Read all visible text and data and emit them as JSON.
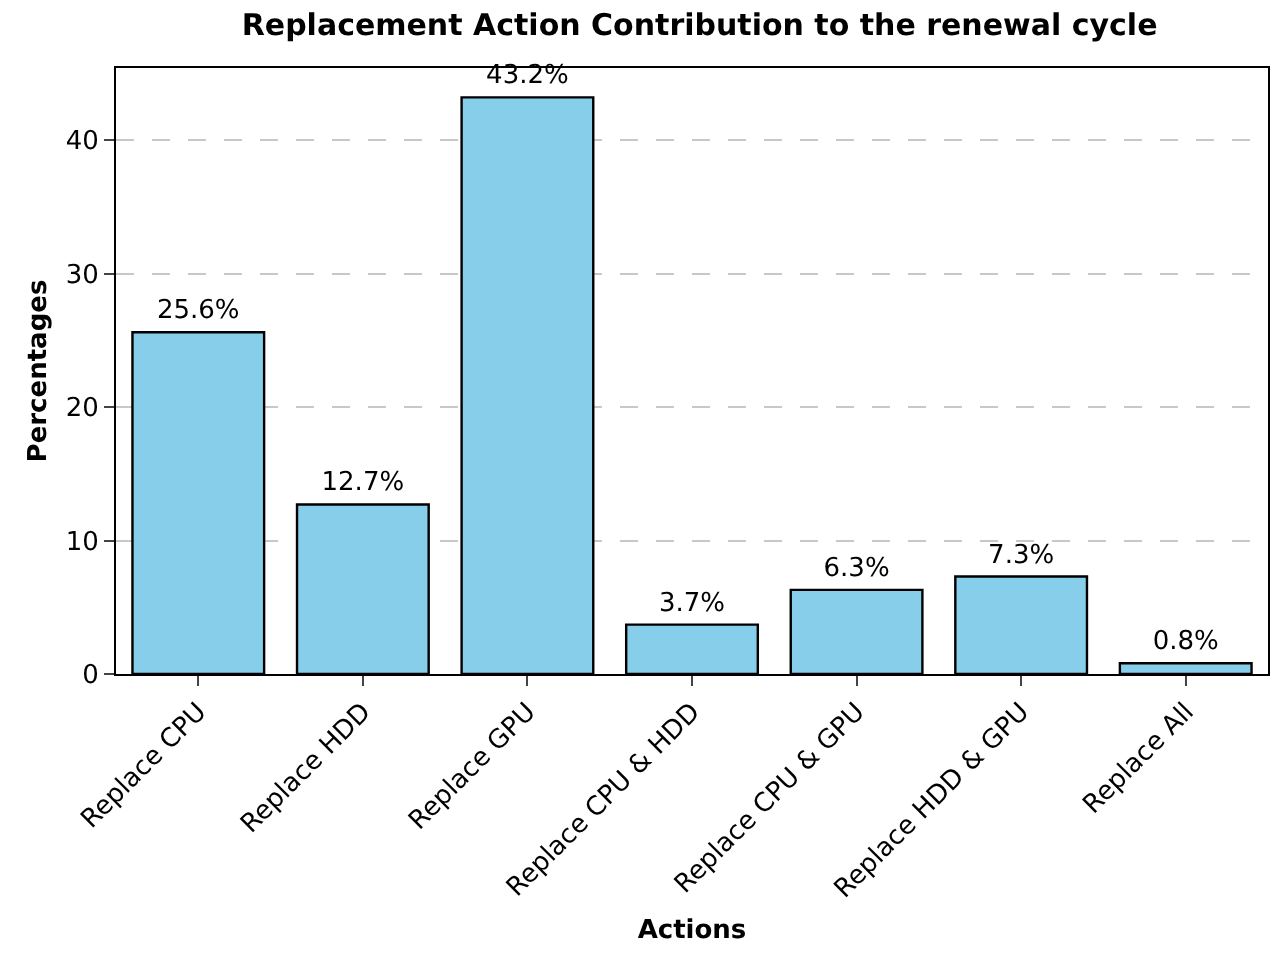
{
  "chart_data": {
    "type": "bar",
    "title": "Replacement Action Contribution to the renewal cycle",
    "xlabel": "Actions",
    "ylabel": "Percentages",
    "categories": [
      "Replace CPU",
      "Replace HDD",
      "Replace GPU",
      "Replace CPU & HDD",
      "Replace CPU & GPU",
      "Replace HDD & GPU",
      "Replace All"
    ],
    "values": [
      25.6,
      12.7,
      43.2,
      3.7,
      6.3,
      7.3,
      0.8
    ],
    "value_labels": [
      "25.6%",
      "12.7%",
      "43.2%",
      "3.7%",
      "6.3%",
      "7.3%",
      "0.8%"
    ],
    "color": "#87ceeb",
    "ylim": [
      0,
      45.4
    ],
    "yticks": [
      0,
      10,
      20,
      30,
      40
    ],
    "grid": "y"
  }
}
